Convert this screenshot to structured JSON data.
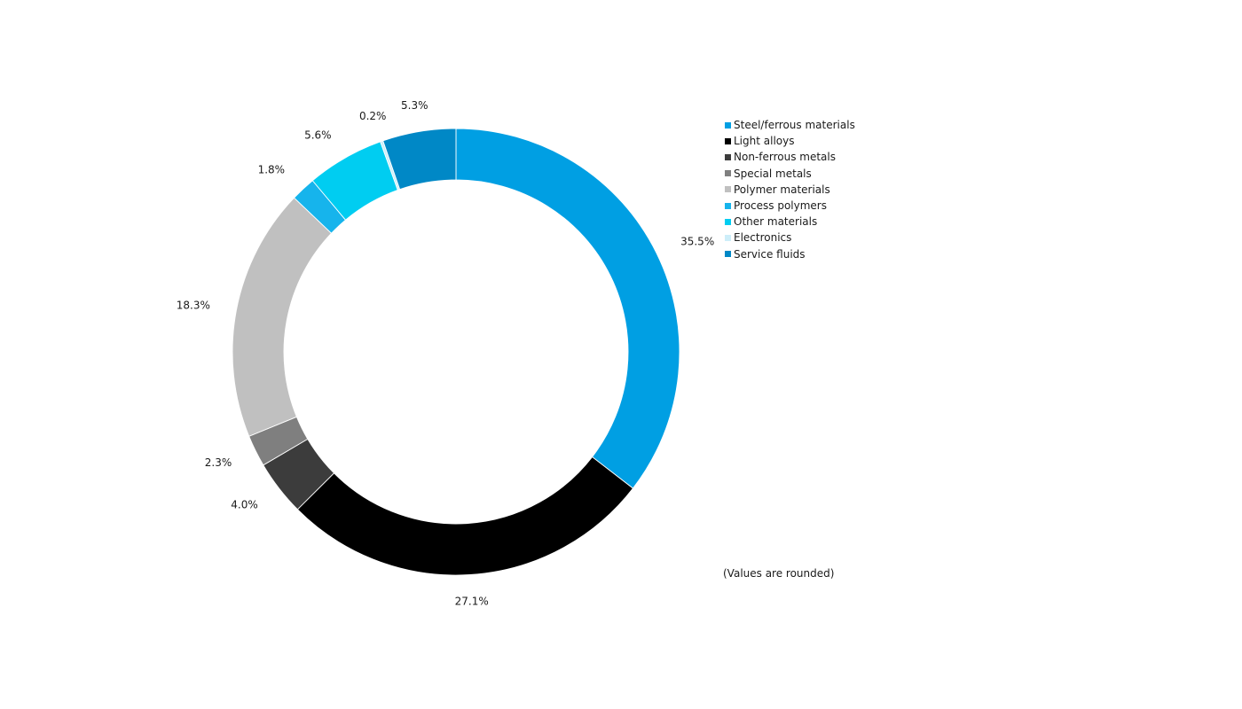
{
  "chart_data": {
    "type": "pie",
    "categories": [
      "Steel/ferrous materials",
      "Light alloys",
      "Non-ferrous metals",
      "Special metals",
      "Polymer materials",
      "Process polymers",
      "Other materials",
      "Electronics",
      "Service fluids"
    ],
    "values": [
      35.5,
      27.1,
      4.0,
      2.3,
      18.3,
      1.8,
      5.6,
      0.2,
      5.3
    ],
    "value_labels": [
      "35.5%",
      "27.1%",
      "4.0%",
      "2.3%",
      "18.3%",
      "1.8%",
      "5.6%",
      "0.2%",
      "5.3%"
    ],
    "colors": [
      "#009fe3",
      "#000000",
      "#3c3c3c",
      "#7f7f7f",
      "#c0c0c0",
      "#16b4ec",
      "#00cdf1",
      "#cdeef9",
      "#0088c6"
    ],
    "legend": {
      "placement": "right",
      "entries": [
        "Steel/ferrous materials",
        "Light alloys",
        "Non-ferrous metals",
        "Special metals",
        "Polymer materials",
        "Process polymers",
        "Other materials",
        "Electronics",
        "Service fluids"
      ]
    },
    "start_angle": "12 o'clock",
    "direction": "clockwise",
    "donut": true,
    "footnote": "(Values are rounded)"
  }
}
